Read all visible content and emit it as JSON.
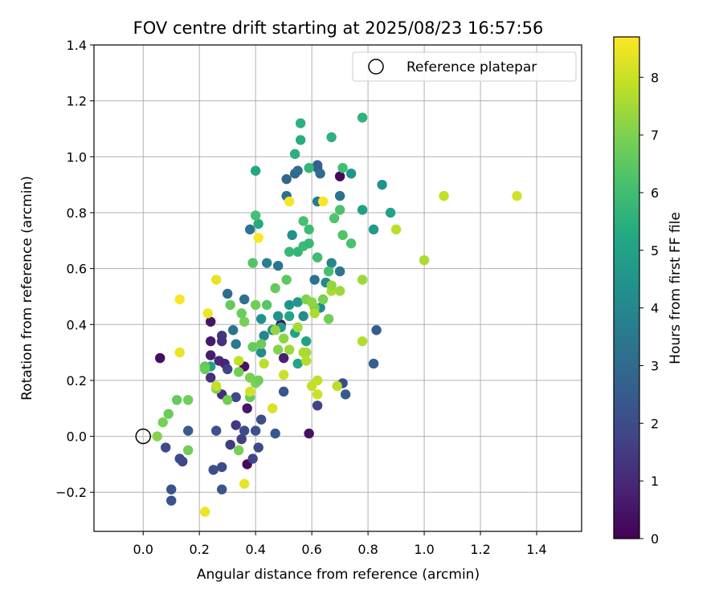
{
  "chart_data": {
    "type": "scatter",
    "title": "FOV centre drift starting at 2025/08/23 16:57:56",
    "xlabel": "Angular distance from reference (arcmin)",
    "ylabel": "Rotation from reference (arcmin)",
    "xlim": [
      -0.175,
      1.56
    ],
    "ylim": [
      -0.34,
      1.4
    ],
    "xticks": [
      0.0,
      0.2,
      0.4,
      0.6,
      0.8,
      1.0,
      1.2,
      1.4
    ],
    "xtick_labels": [
      "0.0",
      "0.2",
      "0.4",
      "0.6",
      "0.8",
      "1.0",
      "1.2",
      "1.4"
    ],
    "yticks": [
      -0.2,
      0.0,
      0.2,
      0.4,
      0.6,
      0.8,
      1.0,
      1.2,
      1.4
    ],
    "ytick_labels": [
      "−0.2",
      "0.0",
      "0.2",
      "0.4",
      "0.6",
      "0.8",
      "1.0",
      "1.2",
      "1.4"
    ],
    "grid": true,
    "legend": {
      "placement": "top-right",
      "entries": [
        {
          "label": "Reference platepar",
          "marker": "open-circle",
          "x": 0.0,
          "y": 0.0
        }
      ]
    },
    "colorbar": {
      "label": "Hours from first FF file",
      "colormap": "viridis",
      "range": [
        0,
        8.7
      ],
      "ticks": [
        0,
        1,
        2,
        3,
        4,
        5,
        6,
        7,
        8
      ],
      "tick_labels": [
        "0",
        "1",
        "2",
        "3",
        "4",
        "5",
        "6",
        "7",
        "8"
      ]
    },
    "series": [
      {
        "points": [
          {
            "x": 0.06,
            "y": 0.28,
            "c": 0.3
          },
          {
            "x": 0.24,
            "y": 0.41,
            "c": 0.5
          },
          {
            "x": 0.24,
            "y": 0.34,
            "c": 0.6
          },
          {
            "x": 0.24,
            "y": 0.29,
            "c": 0.7
          },
          {
            "x": 0.28,
            "y": 0.34,
            "c": 1.2
          },
          {
            "x": 0.28,
            "y": 0.36,
            "c": 1.3
          },
          {
            "x": 0.27,
            "y": 0.27,
            "c": 1.0
          },
          {
            "x": 0.24,
            "y": 0.21,
            "c": 1.2
          },
          {
            "x": 0.29,
            "y": 0.26,
            "c": 0.9
          },
          {
            "x": 0.36,
            "y": 0.25,
            "c": 0.4
          },
          {
            "x": 0.28,
            "y": 0.15,
            "c": 1.1
          },
          {
            "x": 0.37,
            "y": 0.1,
            "c": 0.5
          },
          {
            "x": 0.37,
            "y": -0.1,
            "c": 0.2
          },
          {
            "x": 0.59,
            "y": 0.01,
            "c": 0.4
          },
          {
            "x": 0.7,
            "y": 0.93,
            "c": 0.2
          },
          {
            "x": 0.5,
            "y": 0.28,
            "c": 0.8
          },
          {
            "x": 0.49,
            "y": 0.4,
            "c": 0.3
          },
          {
            "x": 0.33,
            "y": 0.04,
            "c": 1.4
          },
          {
            "x": 0.31,
            "y": -0.03,
            "c": 1.5
          },
          {
            "x": 0.35,
            "y": -0.01,
            "c": 1.6
          },
          {
            "x": 0.39,
            "y": -0.08,
            "c": 1.8
          },
          {
            "x": 0.41,
            "y": -0.04,
            "c": 1.9
          },
          {
            "x": 0.42,
            "y": 0.06,
            "c": 2.1
          },
          {
            "x": 0.4,
            "y": 0.02,
            "c": 2.2
          },
          {
            "x": 0.36,
            "y": 0.02,
            "c": 2.0
          },
          {
            "x": 0.47,
            "y": 0.01,
            "c": 2.4
          },
          {
            "x": 0.62,
            "y": 0.11,
            "c": 1.7
          },
          {
            "x": 0.5,
            "y": 0.16,
            "c": 2.3
          },
          {
            "x": 0.71,
            "y": 0.19,
            "c": 2.0
          },
          {
            "x": 0.72,
            "y": 0.15,
            "c": 2.5
          },
          {
            "x": 0.33,
            "y": 0.14,
            "c": 1.9
          },
          {
            "x": 0.26,
            "y": 0.02,
            "c": 2.2
          },
          {
            "x": 0.28,
            "y": -0.11,
            "c": 2.0
          },
          {
            "x": 0.25,
            "y": -0.12,
            "c": 2.1
          },
          {
            "x": 0.28,
            "y": -0.19,
            "c": 2.4
          },
          {
            "x": 0.1,
            "y": -0.19,
            "c": 2.3
          },
          {
            "x": 0.1,
            "y": -0.23,
            "c": 2.2
          },
          {
            "x": 0.08,
            "y": -0.04,
            "c": 1.9
          },
          {
            "x": 0.13,
            "y": -0.08,
            "c": 2.0
          },
          {
            "x": 0.14,
            "y": -0.09,
            "c": 1.8
          },
          {
            "x": 0.16,
            "y": 0.02,
            "c": 2.5
          },
          {
            "x": 0.3,
            "y": 0.24,
            "c": 1.7
          },
          {
            "x": 0.82,
            "y": 0.26,
            "c": 2.6
          },
          {
            "x": 0.83,
            "y": 0.38,
            "c": 2.5
          },
          {
            "x": 0.3,
            "y": 0.51,
            "c": 3.1
          },
          {
            "x": 0.32,
            "y": 0.38,
            "c": 3.3
          },
          {
            "x": 0.36,
            "y": 0.49,
            "c": 3.2
          },
          {
            "x": 0.33,
            "y": 0.33,
            "c": 3.5
          },
          {
            "x": 0.42,
            "y": 0.3,
            "c": 4.1
          },
          {
            "x": 0.38,
            "y": 0.74,
            "c": 3.3
          },
          {
            "x": 0.48,
            "y": 0.61,
            "c": 3.4
          },
          {
            "x": 0.44,
            "y": 0.62,
            "c": 3.8
          },
          {
            "x": 0.51,
            "y": 0.86,
            "c": 3.2
          },
          {
            "x": 0.51,
            "y": 0.92,
            "c": 2.9
          },
          {
            "x": 0.54,
            "y": 0.94,
            "c": 3.0
          },
          {
            "x": 0.55,
            "y": 0.95,
            "c": 3.1
          },
          {
            "x": 0.62,
            "y": 0.97,
            "c": 2.8
          },
          {
            "x": 0.62,
            "y": 0.96,
            "c": 2.7
          },
          {
            "x": 0.63,
            "y": 0.94,
            "c": 3.1
          },
          {
            "x": 0.7,
            "y": 0.86,
            "c": 3.3
          },
          {
            "x": 0.62,
            "y": 0.84,
            "c": 3.6
          },
          {
            "x": 0.61,
            "y": 0.56,
            "c": 3.3
          },
          {
            "x": 0.65,
            "y": 0.55,
            "c": 4.0
          },
          {
            "x": 0.67,
            "y": 0.62,
            "c": 4.0
          },
          {
            "x": 0.7,
            "y": 0.59,
            "c": 3.4
          },
          {
            "x": 0.63,
            "y": 0.46,
            "c": 4.2
          },
          {
            "x": 0.53,
            "y": 0.72,
            "c": 4.4
          },
          {
            "x": 0.42,
            "y": 0.42,
            "c": 4.3
          },
          {
            "x": 0.43,
            "y": 0.36,
            "c": 4.0
          },
          {
            "x": 0.46,
            "y": 0.38,
            "c": 4.4
          },
          {
            "x": 0.48,
            "y": 0.43,
            "c": 4.4
          },
          {
            "x": 0.52,
            "y": 0.47,
            "c": 4.5
          },
          {
            "x": 0.55,
            "y": 0.48,
            "c": 4.6
          },
          {
            "x": 0.57,
            "y": 0.43,
            "c": 4.2
          },
          {
            "x": 0.52,
            "y": 0.43,
            "c": 5.1
          },
          {
            "x": 0.49,
            "y": 0.39,
            "c": 4.7
          },
          {
            "x": 0.74,
            "y": 0.94,
            "c": 4.5
          },
          {
            "x": 0.85,
            "y": 0.9,
            "c": 4.4
          },
          {
            "x": 0.82,
            "y": 0.74,
            "c": 4.7
          },
          {
            "x": 0.88,
            "y": 0.8,
            "c": 5.0
          },
          {
            "x": 0.78,
            "y": 0.81,
            "c": 4.9
          },
          {
            "x": 0.54,
            "y": 0.37,
            "c": 5.0
          },
          {
            "x": 0.58,
            "y": 0.34,
            "c": 4.9
          },
          {
            "x": 0.55,
            "y": 0.26,
            "c": 5.1
          },
          {
            "x": 0.24,
            "y": 0.25,
            "c": 4.8
          },
          {
            "x": 0.4,
            "y": 0.95,
            "c": 5.2
          },
          {
            "x": 0.41,
            "y": 0.76,
            "c": 5.3
          },
          {
            "x": 0.54,
            "y": 1.01,
            "c": 5.5
          },
          {
            "x": 0.56,
            "y": 1.12,
            "c": 5.5
          },
          {
            "x": 0.56,
            "y": 1.06,
            "c": 5.4
          },
          {
            "x": 0.67,
            "y": 1.07,
            "c": 5.5
          },
          {
            "x": 0.78,
            "y": 1.14,
            "c": 5.6
          },
          {
            "x": 0.59,
            "y": 0.96,
            "c": 5.7
          },
          {
            "x": 0.52,
            "y": 0.66,
            "c": 5.8
          },
          {
            "x": 0.55,
            "y": 0.66,
            "c": 5.7
          },
          {
            "x": 0.57,
            "y": 0.68,
            "c": 5.9
          },
          {
            "x": 0.59,
            "y": 0.69,
            "c": 5.8
          },
          {
            "x": 0.62,
            "y": 0.64,
            "c": 6.0
          },
          {
            "x": 0.66,
            "y": 0.59,
            "c": 6.1
          },
          {
            "x": 0.59,
            "y": 0.74,
            "c": 5.9
          },
          {
            "x": 0.57,
            "y": 0.77,
            "c": 6.1
          },
          {
            "x": 0.71,
            "y": 0.96,
            "c": 6.0
          },
          {
            "x": 0.7,
            "y": 0.81,
            "c": 6.2
          },
          {
            "x": 0.68,
            "y": 0.78,
            "c": 6.3
          },
          {
            "x": 0.71,
            "y": 0.72,
            "c": 6.3
          },
          {
            "x": 0.74,
            "y": 0.69,
            "c": 6.2
          },
          {
            "x": 0.4,
            "y": 0.79,
            "c": 6.1
          },
          {
            "x": 0.39,
            "y": 0.62,
            "c": 6.3
          },
          {
            "x": 0.51,
            "y": 0.56,
            "c": 6.5
          },
          {
            "x": 0.47,
            "y": 0.53,
            "c": 6.6
          },
          {
            "x": 0.44,
            "y": 0.47,
            "c": 6.4
          },
          {
            "x": 0.4,
            "y": 0.47,
            "c": 6.8
          },
          {
            "x": 0.36,
            "y": 0.41,
            "c": 6.9
          },
          {
            "x": 0.35,
            "y": 0.44,
            "c": 6.7
          },
          {
            "x": 0.31,
            "y": 0.47,
            "c": 6.6
          },
          {
            "x": 0.39,
            "y": 0.32,
            "c": 6.6
          },
          {
            "x": 0.42,
            "y": 0.33,
            "c": 6.7
          },
          {
            "x": 0.34,
            "y": 0.23,
            "c": 6.8
          },
          {
            "x": 0.38,
            "y": 0.21,
            "c": 6.9
          },
          {
            "x": 0.4,
            "y": 0.19,
            "c": 7.0
          },
          {
            "x": 0.41,
            "y": 0.2,
            "c": 6.8
          },
          {
            "x": 0.38,
            "y": 0.14,
            "c": 6.7
          },
          {
            "x": 0.3,
            "y": 0.13,
            "c": 6.8
          },
          {
            "x": 0.26,
            "y": 0.17,
            "c": 7.0
          },
          {
            "x": 0.22,
            "y": 0.25,
            "c": 6.5
          },
          {
            "x": 0.22,
            "y": 0.24,
            "c": 6.7
          },
          {
            "x": 0.12,
            "y": 0.13,
            "c": 6.6
          },
          {
            "x": 0.16,
            "y": 0.13,
            "c": 6.8
          },
          {
            "x": 0.09,
            "y": 0.08,
            "c": 6.7
          },
          {
            "x": 0.07,
            "y": 0.05,
            "c": 6.9
          },
          {
            "x": 0.05,
            "y": 0.0,
            "c": 7.1
          },
          {
            "x": 0.16,
            "y": -0.05,
            "c": 6.8
          },
          {
            "x": 0.34,
            "y": -0.05,
            "c": 6.9
          },
          {
            "x": 0.58,
            "y": 0.49,
            "c": 7.0
          },
          {
            "x": 0.64,
            "y": 0.49,
            "c": 6.9
          },
          {
            "x": 0.66,
            "y": 0.42,
            "c": 6.8
          },
          {
            "x": 0.61,
            "y": 0.46,
            "c": 7.0
          },
          {
            "x": 0.48,
            "y": 0.31,
            "c": 7.1
          },
          {
            "x": 0.47,
            "y": 0.38,
            "c": 7.3
          },
          {
            "x": 0.5,
            "y": 0.35,
            "c": 7.2
          },
          {
            "x": 0.52,
            "y": 0.31,
            "c": 7.4
          },
          {
            "x": 0.55,
            "y": 0.39,
            "c": 7.5
          },
          {
            "x": 0.57,
            "y": 0.3,
            "c": 7.6
          },
          {
            "x": 0.58,
            "y": 0.3,
            "c": 7.5
          },
          {
            "x": 0.58,
            "y": 0.27,
            "c": 7.7
          },
          {
            "x": 0.61,
            "y": 0.44,
            "c": 7.6
          },
          {
            "x": 0.6,
            "y": 0.48,
            "c": 7.2
          },
          {
            "x": 0.7,
            "y": 0.52,
            "c": 7.4
          },
          {
            "x": 0.67,
            "y": 0.52,
            "c": 7.6
          },
          {
            "x": 0.67,
            "y": 0.54,
            "c": 7.3
          },
          {
            "x": 0.78,
            "y": 0.56,
            "c": 7.4
          },
          {
            "x": 0.78,
            "y": 0.34,
            "c": 7.7
          },
          {
            "x": 0.69,
            "y": 0.18,
            "c": 7.8
          },
          {
            "x": 0.6,
            "y": 0.18,
            "c": 7.9
          },
          {
            "x": 0.62,
            "y": 0.15,
            "c": 8.0
          },
          {
            "x": 0.62,
            "y": 0.2,
            "c": 7.9
          },
          {
            "x": 0.46,
            "y": 0.1,
            "c": 8.2
          },
          {
            "x": 0.5,
            "y": 0.22,
            "c": 8.0
          },
          {
            "x": 0.43,
            "y": 0.26,
            "c": 7.8
          },
          {
            "x": 0.34,
            "y": 0.27,
            "c": 7.9
          },
          {
            "x": 0.26,
            "y": 0.18,
            "c": 7.9
          },
          {
            "x": 0.38,
            "y": 0.16,
            "c": 8.1
          },
          {
            "x": 0.36,
            "y": -0.17,
            "c": 8.4
          },
          {
            "x": 0.22,
            "y": -0.27,
            "c": 8.5
          },
          {
            "x": 0.13,
            "y": 0.3,
            "c": 8.4
          },
          {
            "x": 0.13,
            "y": 0.49,
            "c": 8.6
          },
          {
            "x": 0.23,
            "y": 0.44,
            "c": 8.5
          },
          {
            "x": 0.26,
            "y": 0.56,
            "c": 8.4
          },
          {
            "x": 0.52,
            "y": 0.84,
            "c": 8.6
          },
          {
            "x": 0.64,
            "y": 0.84,
            "c": 8.6
          },
          {
            "x": 0.41,
            "y": 0.71,
            "c": 8.7
          },
          {
            "x": 0.9,
            "y": 0.74,
            "c": 7.8
          },
          {
            "x": 1.0,
            "y": 0.63,
            "c": 7.6
          },
          {
            "x": 1.07,
            "y": 0.86,
            "c": 7.9
          },
          {
            "x": 1.33,
            "y": 0.86,
            "c": 8.1
          }
        ]
      }
    ]
  }
}
